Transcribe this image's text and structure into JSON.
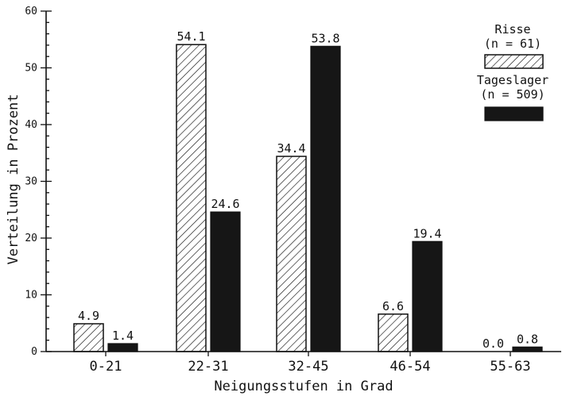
{
  "chart_data": {
    "type": "bar",
    "categories": [
      "0-21",
      "22-31",
      "32-45",
      "46-54",
      "55-63"
    ],
    "series": [
      {
        "name": "Risse",
        "note": "(n = 61)",
        "pattern": "hatched",
        "values": [
          4.9,
          54.1,
          34.4,
          6.6,
          0.0
        ]
      },
      {
        "name": "Tageslager",
        "note": "(n = 509)",
        "pattern": "solid",
        "values": [
          1.4,
          24.6,
          53.8,
          19.4,
          0.8
        ]
      }
    ],
    "data_labels": [
      [
        "4.9",
        "54.1",
        "34.4",
        "6.6",
        "0.0"
      ],
      [
        "1.4",
        "24.6",
        "53.8",
        "19.4",
        "0.8"
      ]
    ],
    "xlabel": "Neigungsstufen in Grad",
    "ylabel": "Verteilung in Prozent",
    "ylim": [
      0,
      60
    ],
    "yticks": [
      0,
      10,
      20,
      30,
      40,
      50,
      60
    ],
    "yticks_minor_step": 2,
    "legend_position": "top-right",
    "grid": false,
    "colors": {
      "solid": "#161616",
      "line": "#111111"
    }
  }
}
